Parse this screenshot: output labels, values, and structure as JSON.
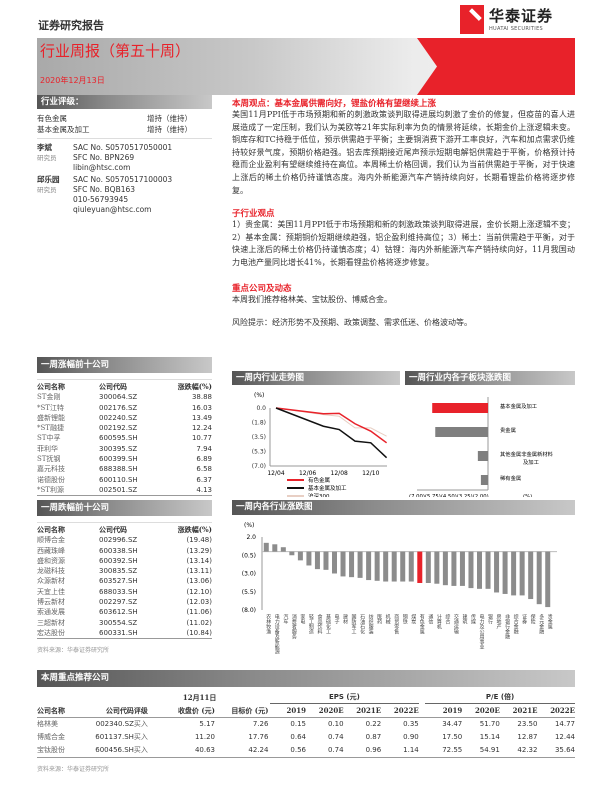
{
  "header": {
    "doc_type": "证券研究报告",
    "logo_name": "华泰证券",
    "logo_en": "HUATAI SECURITIES",
    "report_title": "行业周报（第五十周）",
    "date": "2020年12月13日"
  },
  "rating": {
    "title": "行业评级：",
    "items": [
      {
        "sector": "有色金属",
        "rating": "增持（维持）"
      },
      {
        "sector": "基本金属及加工",
        "rating": "增持（维持）"
      }
    ]
  },
  "analysts": [
    {
      "name": "李斌",
      "role": "研究员",
      "lines": [
        "SAC No. S0570517050001",
        "SFC No. BPN269",
        "libin@htsc.com"
      ]
    },
    {
      "name": "邱乐园",
      "role": "研究员",
      "lines": [
        "SAC No. S0570517100003",
        "SFC No. BQB163",
        "010-56793945",
        "qiuleyuan@htsc.com"
      ]
    }
  ],
  "view": {
    "title": "本周观点：基本金属供需向好，锂盐价格有望继续上涨",
    "body": "美国11月PPI低于市场预期和新的刺激政策谈判取得进展均刺激了金价的修复，但疫苗的喜人进展造成了一定压制，我们认为美欧等21年实际利率为负的情景将延续，长期金价上涨逻辑未变。铜库存和TC持稳于低位，预示供需趋于平衡；主要铜消费下游开工率良好，汽车和加点需求仍维持较好景气度，预期价格趋强。铝去库预期接近尾声预示短期电解铝供需趋于平衡，价格预计持稳而企业盈利有望继续维持在高位。本周稀土价格回调，我们认为当前供需趋于平衡，对于快速上涨后的稀土价格仍持谨慎态度。海内外新能源汽车产销持续向好，长期看锂盐价格将逐步修复。",
    "sub_title": "子行业观点",
    "sub_body": "1）贵金属：美国11月PPI低于市场预期和新的刺激政策谈判取得进展，金价长期上涨逻辑不变；2）基本金属：预期铜价短期继续趋强，铝企盈利维持高位；3）稀土：当前供需趋于平衡，对于快速上涨后的稀土价格仍持谨慎态度；4）钴锂：海内外新能源汽车产销持续向好，11月我国动力电池产量同比增长41%，长期看锂盐价格将逐步修复。",
    "key_title": "重点公司及动态",
    "key_body": "本周我们推荐格林美、宝钛股份、博威合金。",
    "risk": "风险提示：经济形势不及预期、政策调整、需求低迷、价格波动等。"
  },
  "gainers": {
    "title": "一周涨幅前十公司",
    "headers": [
      "公司名称",
      "公司代码",
      "涨跌幅(%)"
    ],
    "rows": [
      [
        "ST金刚",
        "300064.SZ",
        "38.88"
      ],
      [
        "*ST江特",
        "002176.SZ",
        "16.03"
      ],
      [
        "盛新锂能",
        "002240.SZ",
        "13.49"
      ],
      [
        "*ST融捷",
        "002192.SZ",
        "12.24"
      ],
      [
        "ST中孚",
        "600595.SH",
        "10.77"
      ],
      [
        "菲利华",
        "300395.SZ",
        "7.94"
      ],
      [
        "ST抚钢",
        "600399.SH",
        "6.89"
      ],
      [
        "嘉元科技",
        "688388.SH",
        "6.58"
      ],
      [
        "诺德股份",
        "600110.SH",
        "6.37"
      ],
      [
        "*ST利源",
        "002501.SZ",
        "4.13"
      ]
    ]
  },
  "losers": {
    "title": "一周跌幅前十公司",
    "headers": [
      "公司名称",
      "公司代码",
      "涨跌幅(%)"
    ],
    "rows": [
      [
        "顺博合金",
        "002996.SZ",
        "(19.48)"
      ],
      [
        "西藏珠峰",
        "600338.SH",
        "(13.29)"
      ],
      [
        "盛和资源",
        "600392.SH",
        "(13.14)"
      ],
      [
        "龙磁科技",
        "300835.SZ",
        "(13.11)"
      ],
      [
        "众源新材",
        "603527.SH",
        "(13.06)"
      ],
      [
        "天宜上佳",
        "688033.SH",
        "(12.10)"
      ],
      [
        "博云新材",
        "002297.SZ",
        "(12.03)"
      ],
      [
        "索通发展",
        "603612.SH",
        "(11.06)"
      ],
      [
        "三超新材",
        "300554.SZ",
        "(11.02)"
      ],
      [
        "宏达股份",
        "600331.SH",
        "(10.84)"
      ]
    ],
    "source": "资料来源：华泰证券研究所"
  },
  "chart_data": [
    {
      "title": "一周内行业走势图",
      "type": "line",
      "ylabel": "(%)",
      "x": [
        "12/04",
        "12/07",
        "12/08",
        "12/09",
        "12/10",
        "12/11"
      ],
      "xticks": [
        "12/04",
        "12/06",
        "12/08",
        "12/10"
      ],
      "yticks": [
        "0.0",
        "(1.8)",
        "(3.5)",
        "(5.3)",
        "(7.0)"
      ],
      "ylim": [
        -7,
        0
      ],
      "legend": "bottom",
      "series": [
        {
          "name": "有色金属",
          "color": "#e8222a",
          "values": [
            0,
            -0.7,
            -0.65,
            -1.9,
            -2.8,
            -4.2
          ]
        },
        {
          "name": "基本金属及加工",
          "color": "#111111",
          "values": [
            0,
            -2.2,
            -2.6,
            -4.0,
            -4.2,
            -6.0
          ]
        },
        {
          "name": "沪深300",
          "color": "#e8cfc4",
          "values": [
            0,
            -0.8,
            -1.0,
            -2.4,
            -2.4,
            -3.4
          ]
        }
      ]
    },
    {
      "title": "一周行业内各子板块涨跌图",
      "type": "bar",
      "orientation": "horizontal",
      "unit": "(%)",
      "xticks": "(7.00)(5.75)(4.50)(3.25)(2.00)",
      "xlim": [
        -7,
        0
      ],
      "categories": [
        "基本金属及加工",
        "贵金属",
        "其他金属非金属新材料及加工",
        "稀有金属"
      ],
      "values": [
        -5.5,
        -5.2,
        -1.0,
        -0.7
      ],
      "colors": [
        "#e8222a",
        "#7f7f7f",
        "#7f7f7f",
        "#7f7f7f"
      ]
    },
    {
      "title": "一周内各行业涨跌图",
      "type": "bar",
      "ylabel": "(%)",
      "yticks": [
        "2.0",
        "(0.5)",
        "(3.0)",
        "(5.5)",
        "(8.0)"
      ],
      "ylim": [
        -8,
        2
      ],
      "highlight": "有色金属",
      "highlight_color": "#e8222a",
      "bar_color": "#8c8c8c",
      "categories": [
        "农林牧渔",
        "电力设备及新能源",
        "汽车",
        "消费者服务",
        "家电",
        "轻工制造",
        "食品饮料",
        "基础化工",
        "电子",
        "建材",
        "国防军工",
        "石油石化",
        "纺织服装",
        "医药",
        "机械",
        "商贸零售",
        "钢铁",
        "煤炭",
        "有色金属",
        "通信",
        "计算机",
        "综合",
        "交通运输",
        "建筑",
        "传媒",
        "电力及公用事业",
        "银行",
        "房地产",
        "非银行金融",
        "综合金融",
        "证券",
        "保险",
        "多元金融",
        "贵金属"
      ],
      "values": [
        1.2,
        1.0,
        0.6,
        -0.5,
        -1.2,
        -1.9,
        -2.4,
        -2.5,
        -3.0,
        -3.4,
        -3.5,
        -3.6,
        -3.9,
        -4.0,
        -4.1,
        -4.1,
        -4.1,
        -4.1,
        -4.3,
        -4.3,
        -4.4,
        -4.6,
        -4.7,
        -4.7,
        -5.0,
        -5.1,
        -5.1,
        -5.6,
        -5.8,
        -6.0,
        -6.0,
        -6.5,
        -7.2,
        -7.6
      ]
    }
  ],
  "recommend": {
    "title": "本周重点推荐公司",
    "date_header": "12月11日",
    "eps_header": "EPS (元)",
    "pe_header": "P/E (倍)",
    "headers": [
      "公司名称",
      "公司代码",
      "评级",
      "收盘价 (元)",
      "目标价 (元)",
      "2019",
      "2020E",
      "2021E",
      "2022E",
      "2019",
      "2020E",
      "2021E",
      "2022E"
    ],
    "rows": [
      [
        "格林美",
        "002340.SZ",
        "买入",
        "5.17",
        "7.26",
        "0.15",
        "0.10",
        "0.22",
        "0.35",
        "34.47",
        "51.70",
        "23.50",
        "14.77"
      ],
      [
        "博威合金",
        "601137.SH",
        "买入",
        "11.20",
        "17.76",
        "0.64",
        "0.74",
        "0.87",
        "0.90",
        "17.50",
        "15.14",
        "12.87",
        "12.44"
      ],
      [
        "宝钛股份",
        "600456.SH",
        "买入",
        "40.63",
        "42.24",
        "0.56",
        "0.74",
        "0.96",
        "1.14",
        "72.55",
        "54.91",
        "42.32",
        "35.64"
      ]
    ],
    "source": "资料来源：华泰证券研究所"
  }
}
